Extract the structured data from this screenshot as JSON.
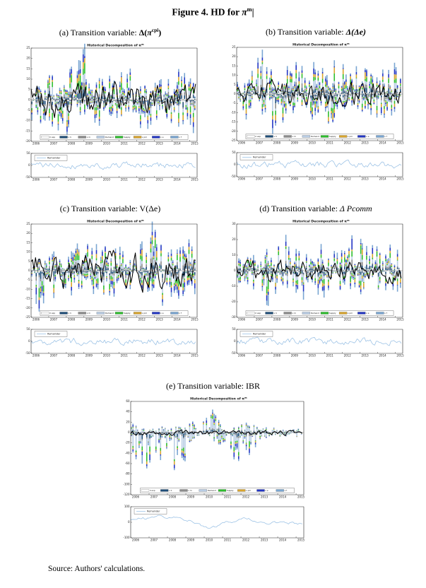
{
  "page": {
    "title_prefix": "Figure 4. HD for ",
    "title_symbol": "π",
    "title_sup": "m",
    "title_cursor": "|",
    "source": "Source: Authors' calculations."
  },
  "charts_common": {
    "main_title_prefix": "Historical Decomposition of ",
    "main_title_symbol": "π",
    "main_title_sup": "m",
    "remainder_label": "Remainder",
    "remainder_color": "#9dc3e6",
    "line_color": "#000000",
    "legend": [
      {
        "label": "π exp",
        "color": "#ffffff"
      },
      {
        "label": "ε π",
        "color": "#1f4e79"
      },
      {
        "label": "ε m",
        "color": "#8c8c8c"
      },
      {
        "label": "Demand",
        "color": "#b9cde5"
      },
      {
        "label": "Supply",
        "color": "#2ebe2e"
      },
      {
        "label": "ε pm",
        "color": "#d9a52e"
      },
      {
        "label": "ε e",
        "color": "#2336c4"
      },
      {
        "label": "ε f",
        "color": "#7aa6d2"
      }
    ],
    "years": [
      2006,
      2007,
      2008,
      2009,
      2010,
      2011,
      2012,
      2013,
      2014,
      2015
    ]
  },
  "panels": [
    {
      "caption_label": "(a) Transition variable: ",
      "math_pre": "Δ(",
      "math_sym": "π",
      "math_sup": "cpi",
      "math_post": ")"
    },
    {
      "caption_label": "(b) Transition variable: ",
      "math_pre": "Δ(Δe)",
      "math_sym": "",
      "math_sup": "",
      "math_post": ""
    },
    {
      "caption_label": "(c) Transition variable: ",
      "math_pre": "V(Δe)",
      "math_sym": "",
      "math_sup": "",
      "math_post": ""
    },
    {
      "caption_label": "(d) Transition variable: ",
      "math_pre": "Δ Pcomm",
      "math_sym": "",
      "math_sup": "",
      "math_post": ""
    },
    {
      "caption_label": "(e) Transition variable: ",
      "math_pre": "IBR",
      "math_sym": "",
      "math_sup": "",
      "math_post": ""
    }
  ],
  "chart_data": [
    {
      "panel": "a",
      "type": "stacked-bar+line",
      "xlim": [
        2006,
        2015.42
      ],
      "ylim": [
        -20,
        25
      ],
      "ytick_step": 5,
      "seed": 7,
      "line_amp": 6,
      "color_weights": [
        0.4,
        0.9,
        0.8,
        1.5,
        1.1,
        0.9,
        1.0,
        1.2
      ],
      "pos_env": [
        [
          2006,
          8
        ],
        [
          2006.8,
          10
        ],
        [
          2007.3,
          12
        ],
        [
          2007.8,
          8
        ],
        [
          2008.2,
          13
        ],
        [
          2008.7,
          23
        ],
        [
          2009.1,
          22
        ],
        [
          2009.4,
          15
        ],
        [
          2009.8,
          12
        ],
        [
          2010.3,
          14
        ],
        [
          2010.8,
          15
        ],
        [
          2011.3,
          13
        ],
        [
          2011.8,
          16
        ],
        [
          2012.3,
          10
        ],
        [
          2012.8,
          8
        ],
        [
          2013.3,
          9
        ],
        [
          2013.8,
          11
        ],
        [
          2014.2,
          16
        ],
        [
          2014.7,
          12
        ],
        [
          2015.4,
          16
        ]
      ],
      "neg_env": [
        [
          2006,
          8
        ],
        [
          2006.6,
          10
        ],
        [
          2007.1,
          12
        ],
        [
          2007.5,
          19
        ],
        [
          2007.9,
          16
        ],
        [
          2008.3,
          10
        ],
        [
          2008.8,
          8
        ],
        [
          2009.3,
          9
        ],
        [
          2009.8,
          11
        ],
        [
          2010.4,
          9
        ],
        [
          2011,
          10
        ],
        [
          2011.6,
          13
        ],
        [
          2012.2,
          16
        ],
        [
          2012.7,
          12
        ],
        [
          2013.2,
          10
        ],
        [
          2013.8,
          14
        ],
        [
          2014.4,
          12
        ],
        [
          2015.4,
          15
        ]
      ],
      "remainder": {
        "ylim": [
          -50,
          50
        ],
        "yticks": [
          50,
          0,
          -50
        ],
        "base_env": [
          [
            2006,
            0
          ],
          [
            2015.4,
            0
          ]
        ],
        "noise": 11,
        "seed": 41
      }
    },
    {
      "panel": "b",
      "type": "stacked-bar+line",
      "xlim": [
        2006,
        2015.42
      ],
      "ylim": [
        -25,
        25
      ],
      "ytick_step": 5,
      "seed": 13,
      "line_amp": 5,
      "color_weights": [
        0.4,
        0.9,
        0.8,
        1.5,
        1.1,
        0.9,
        1.0,
        1.2
      ],
      "pos_env": [
        [
          2006,
          14
        ],
        [
          2006.5,
          10
        ],
        [
          2007,
          12
        ],
        [
          2007.5,
          21
        ],
        [
          2008,
          13
        ],
        [
          2008.5,
          17
        ],
        [
          2009,
          14
        ],
        [
          2009.5,
          16
        ],
        [
          2010,
          13
        ],
        [
          2010.5,
          15
        ],
        [
          2011,
          18
        ],
        [
          2011.5,
          17
        ],
        [
          2012,
          15
        ],
        [
          2012.4,
          22
        ],
        [
          2013,
          10
        ],
        [
          2013.5,
          12
        ],
        [
          2014,
          13
        ],
        [
          2014.5,
          11
        ],
        [
          2015.4,
          16
        ]
      ],
      "neg_env": [
        [
          2006,
          14
        ],
        [
          2006.5,
          16
        ],
        [
          2007,
          12
        ],
        [
          2007.5,
          14
        ],
        [
          2008,
          20
        ],
        [
          2008.4,
          21
        ],
        [
          2009,
          10
        ],
        [
          2009.5,
          12
        ],
        [
          2010,
          14
        ],
        [
          2010.5,
          13
        ],
        [
          2011,
          12
        ],
        [
          2011.5,
          14
        ],
        [
          2012,
          12
        ],
        [
          2012.5,
          13
        ],
        [
          2013,
          10
        ],
        [
          2013.5,
          8
        ],
        [
          2014,
          12
        ],
        [
          2014.5,
          11
        ],
        [
          2015.4,
          13
        ]
      ],
      "remainder": {
        "ylim": [
          -50,
          50
        ],
        "yticks": [
          50,
          0,
          -50
        ],
        "base_env": [
          [
            2006,
            0
          ],
          [
            2015.4,
            0
          ]
        ],
        "noise": 11,
        "seed": 43
      }
    },
    {
      "panel": "c",
      "type": "stacked-bar+line",
      "xlim": [
        2006,
        2015.42
      ],
      "ylim": [
        -25,
        25
      ],
      "ytick_step": 5,
      "seed": 19,
      "line_amp": 7,
      "color_weights": [
        0.4,
        0.9,
        0.8,
        1.5,
        1.1,
        0.9,
        1.0,
        1.2
      ],
      "pos_env": [
        [
          2006,
          6
        ],
        [
          2006.5,
          8
        ],
        [
          2007,
          10
        ],
        [
          2007.5,
          8
        ],
        [
          2008,
          9
        ],
        [
          2008.5,
          12
        ],
        [
          2009,
          11
        ],
        [
          2009.5,
          13
        ],
        [
          2010,
          12
        ],
        [
          2010.5,
          13
        ],
        [
          2011,
          12
        ],
        [
          2011.5,
          10
        ],
        [
          2012,
          12
        ],
        [
          2012.5,
          14
        ],
        [
          2012.9,
          22
        ],
        [
          2013.3,
          16
        ],
        [
          2013.8,
          15
        ],
        [
          2014.3,
          12
        ],
        [
          2014.8,
          14
        ],
        [
          2015.4,
          12
        ]
      ],
      "neg_env": [
        [
          2006,
          8
        ],
        [
          2006.4,
          25
        ],
        [
          2006.8,
          12
        ],
        [
          2007.3,
          14
        ],
        [
          2007.8,
          15
        ],
        [
          2008.3,
          13
        ],
        [
          2009,
          10
        ],
        [
          2009.5,
          12
        ],
        [
          2010,
          13
        ],
        [
          2010.5,
          12
        ],
        [
          2011,
          10
        ],
        [
          2011.5,
          11
        ],
        [
          2012,
          10
        ],
        [
          2012.6,
          12
        ],
        [
          2013.2,
          16
        ],
        [
          2013.8,
          14
        ],
        [
          2014.4,
          12
        ],
        [
          2015.4,
          12
        ]
      ],
      "remainder": {
        "ylim": [
          -50,
          50
        ],
        "yticks": [
          50,
          0,
          -50
        ],
        "base_env": [
          [
            2006,
            0
          ],
          [
            2015.4,
            0
          ]
        ],
        "noise": 11,
        "seed": 47
      }
    },
    {
      "panel": "d",
      "type": "stacked-bar+line",
      "xlim": [
        2006,
        2015.42
      ],
      "ylim": [
        -30,
        30
      ],
      "ytick_step": 10,
      "seed": 23,
      "line_amp": 5,
      "color_weights": [
        0.4,
        0.9,
        0.8,
        1.5,
        1.1,
        0.9,
        1.0,
        1.2
      ],
      "pos_env": [
        [
          2006,
          6
        ],
        [
          2006.5,
          8
        ],
        [
          2007,
          9
        ],
        [
          2007.5,
          10
        ],
        [
          2008,
          16
        ],
        [
          2008.4,
          21
        ],
        [
          2008.8,
          19
        ],
        [
          2009.2,
          12
        ],
        [
          2009.8,
          10
        ],
        [
          2010.3,
          14
        ],
        [
          2010.8,
          15
        ],
        [
          2011.3,
          13
        ],
        [
          2011.8,
          12
        ],
        [
          2012.3,
          16
        ],
        [
          2012.8,
          21
        ],
        [
          2013.3,
          14
        ],
        [
          2013.8,
          20
        ],
        [
          2014.3,
          12
        ],
        [
          2014.8,
          14
        ],
        [
          2015.4,
          12
        ]
      ],
      "neg_env": [
        [
          2006,
          8
        ],
        [
          2006.5,
          10
        ],
        [
          2007,
          12
        ],
        [
          2007.5,
          17
        ],
        [
          2007.9,
          23
        ],
        [
          2008.3,
          15
        ],
        [
          2008.8,
          12
        ],
        [
          2009.3,
          14
        ],
        [
          2009.8,
          16
        ],
        [
          2010.3,
          14
        ],
        [
          2010.8,
          15
        ],
        [
          2011.3,
          12
        ],
        [
          2011.8,
          13
        ],
        [
          2012.3,
          12
        ],
        [
          2012.8,
          14
        ],
        [
          2013.2,
          21
        ],
        [
          2013.7,
          12
        ],
        [
          2014.2,
          10
        ],
        [
          2014.8,
          12
        ],
        [
          2015.4,
          13
        ]
      ],
      "remainder": {
        "ylim": [
          -50,
          50
        ],
        "yticks": [
          50,
          0,
          -50
        ],
        "base_env": [
          [
            2006,
            0
          ],
          [
            2015.4,
            0
          ]
        ],
        "noise": 11,
        "seed": 53
      }
    },
    {
      "panel": "e",
      "type": "stacked-bar+line",
      "xlim": [
        2006,
        2015.42
      ],
      "ylim": [
        -120,
        60
      ],
      "ytick_step": 20,
      "seed": 31,
      "line_amp": 4,
      "color_weights": [
        0.3,
        0.8,
        0.5,
        4.5,
        0.9,
        0.7,
        0.9,
        1.3
      ],
      "pos_env": [
        [
          2006,
          18
        ],
        [
          2006.5,
          14
        ],
        [
          2007,
          12
        ],
        [
          2007.5,
          10
        ],
        [
          2008,
          12
        ],
        [
          2008.5,
          10
        ],
        [
          2009,
          8
        ],
        [
          2009.4,
          20
        ],
        [
          2009.8,
          42
        ],
        [
          2010.1,
          45
        ],
        [
          2010.4,
          42
        ],
        [
          2010.7,
          25
        ],
        [
          2011,
          12
        ],
        [
          2011.5,
          10
        ],
        [
          2012,
          14
        ],
        [
          2012.5,
          18
        ],
        [
          2013,
          10
        ],
        [
          2013.5,
          8
        ],
        [
          2014,
          8
        ],
        [
          2014.5,
          6
        ],
        [
          2015.4,
          8
        ]
      ],
      "neg_env": [
        [
          2006,
          45
        ],
        [
          2006.4,
          55
        ],
        [
          2006.8,
          60
        ],
        [
          2007.2,
          50
        ],
        [
          2007.6,
          55
        ],
        [
          2008,
          50
        ],
        [
          2008.3,
          95
        ],
        [
          2008.6,
          55
        ],
        [
          2009,
          45
        ],
        [
          2009.4,
          30
        ],
        [
          2009.8,
          12
        ],
        [
          2010.2,
          10
        ],
        [
          2010.6,
          15
        ],
        [
          2011,
          30
        ],
        [
          2011.4,
          45
        ],
        [
          2011.8,
          50
        ],
        [
          2012.2,
          55
        ],
        [
          2012.6,
          35
        ],
        [
          2013,
          15
        ],
        [
          2013.5,
          10
        ],
        [
          2014,
          8
        ],
        [
          2014.5,
          6
        ],
        [
          2015.4,
          8
        ]
      ],
      "remainder": {
        "ylim": [
          -100,
          100
        ],
        "yticks": [
          100,
          0,
          -100
        ],
        "base_env": [
          [
            2006,
            15
          ],
          [
            2006.4,
            30
          ],
          [
            2006.8,
            25
          ],
          [
            2007.2,
            35
          ],
          [
            2007.6,
            45
          ],
          [
            2008,
            30
          ],
          [
            2008.4,
            28
          ],
          [
            2008.8,
            22
          ],
          [
            2009.1,
            15
          ],
          [
            2009.4,
            0
          ],
          [
            2009.7,
            -15
          ],
          [
            2010,
            -25
          ],
          [
            2010.3,
            -38
          ],
          [
            2010.6,
            -28
          ],
          [
            2010.9,
            -10
          ],
          [
            2011.2,
            0
          ],
          [
            2011.6,
            8
          ],
          [
            2012,
            22
          ],
          [
            2012.3,
            28
          ],
          [
            2012.6,
            12
          ],
          [
            2013,
            5
          ],
          [
            2013.4,
            -3
          ],
          [
            2013.8,
            2
          ],
          [
            2014.2,
            -2
          ],
          [
            2014.6,
            -5
          ],
          [
            2015.4,
            -8
          ]
        ],
        "noise": 7,
        "seed": 59
      }
    }
  ]
}
